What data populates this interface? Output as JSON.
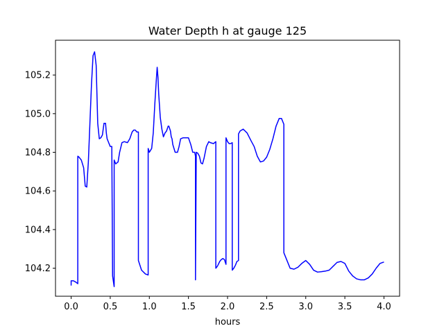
{
  "chart_data": {
    "type": "line",
    "title": "Water Depth h at gauge 125",
    "xlabel": "hours",
    "ylabel": "",
    "xlim": [
      -0.2,
      4.2
    ],
    "ylim": [
      104.055,
      105.38
    ],
    "xticks": [
      0.0,
      0.5,
      1.0,
      1.5,
      2.0,
      2.5,
      3.0,
      3.5,
      4.0
    ],
    "xtick_labels": [
      "0.0",
      "0.5",
      "1.0",
      "1.5",
      "2.0",
      "2.5",
      "3.0",
      "3.5",
      "4.0"
    ],
    "yticks": [
      104.2,
      104.4,
      104.6,
      104.8,
      105.0,
      105.2
    ],
    "ytick_labels": [
      "104.2",
      "104.4",
      "104.6",
      "104.8",
      "105.0",
      "105.2"
    ],
    "grid": false,
    "legend": "none",
    "series": [
      {
        "color": "#0000ff",
        "x": [
          0.0,
          0.0,
          0.03,
          0.06,
          0.085,
          0.085,
          0.1,
          0.13,
          0.16,
          0.18,
          0.2,
          0.22,
          0.24,
          0.26,
          0.28,
          0.3,
          0.32,
          0.34,
          0.36,
          0.38,
          0.4,
          0.42,
          0.44,
          0.45,
          0.46,
          0.48,
          0.5,
          0.52,
          0.53,
          0.53,
          0.55,
          0.55,
          0.57,
          0.6,
          0.62,
          0.65,
          0.68,
          0.72,
          0.75,
          0.78,
          0.8,
          0.82,
          0.84,
          0.86,
          0.86,
          0.9,
          0.95,
          0.985,
          0.985,
          1.0,
          1.03,
          1.05,
          1.07,
          1.09,
          1.1,
          1.11,
          1.12,
          1.14,
          1.16,
          1.18,
          1.2,
          1.22,
          1.24,
          1.25,
          1.27,
          1.28,
          1.29,
          1.3,
          1.33,
          1.36,
          1.38,
          1.4,
          1.43,
          1.46,
          1.5,
          1.53,
          1.555,
          1.58,
          1.59,
          1.59,
          1.6,
          1.62,
          1.64,
          1.66,
          1.68,
          1.7,
          1.73,
          1.76,
          1.78,
          1.82,
          1.85,
          1.85,
          1.87,
          1.9,
          1.92,
          1.94,
          1.96,
          1.98,
          1.98,
          2.0,
          2.02,
          2.04,
          2.06,
          2.06,
          2.08,
          2.1,
          2.12,
          2.14,
          2.14,
          2.16,
          2.2,
          2.25,
          2.3,
          2.34,
          2.38,
          2.42,
          2.46,
          2.5,
          2.54,
          2.58,
          2.62,
          2.66,
          2.69,
          2.72,
          2.72,
          2.75,
          2.8,
          2.85,
          2.9,
          2.95,
          3.0,
          3.05,
          3.1,
          3.15,
          3.2,
          3.25,
          3.3,
          3.35,
          3.4,
          3.45,
          3.5,
          3.55,
          3.6,
          3.65,
          3.7,
          3.75,
          3.8,
          3.85,
          3.9,
          3.95,
          4.0
        ],
        "y": [
          104.11,
          104.135,
          104.135,
          104.128,
          104.12,
          104.78,
          104.775,
          104.76,
          104.72,
          104.625,
          104.62,
          104.75,
          104.95,
          105.15,
          105.3,
          105.32,
          105.25,
          104.95,
          104.87,
          104.875,
          104.89,
          104.95,
          104.95,
          104.9,
          104.87,
          104.85,
          104.83,
          104.83,
          104.16,
          104.16,
          104.105,
          104.76,
          104.74,
          104.75,
          104.8,
          104.85,
          104.855,
          104.85,
          104.87,
          104.905,
          104.915,
          104.915,
          104.905,
          104.905,
          104.24,
          104.19,
          104.17,
          104.165,
          104.82,
          104.8,
          104.82,
          104.9,
          105.05,
          105.18,
          105.24,
          105.19,
          105.1,
          104.98,
          104.92,
          104.88,
          104.9,
          104.91,
          104.935,
          104.935,
          104.91,
          104.88,
          104.87,
          104.84,
          104.8,
          104.8,
          104.83,
          104.87,
          104.875,
          104.875,
          104.875,
          104.84,
          104.8,
          104.8,
          104.78,
          104.14,
          104.8,
          104.795,
          104.78,
          104.745,
          104.74,
          104.77,
          104.83,
          104.855,
          104.85,
          104.845,
          104.855,
          104.2,
          104.21,
          104.235,
          104.245,
          104.25,
          104.245,
          104.22,
          104.875,
          104.855,
          104.845,
          104.845,
          104.85,
          104.19,
          104.2,
          104.215,
          104.235,
          104.24,
          104.895,
          104.91,
          104.92,
          104.9,
          104.86,
          104.83,
          104.78,
          104.75,
          104.755,
          104.775,
          104.815,
          104.87,
          104.935,
          104.975,
          104.975,
          104.945,
          104.28,
          104.25,
          104.2,
          104.195,
          104.205,
          104.225,
          104.24,
          104.22,
          104.19,
          104.18,
          104.182,
          104.185,
          104.19,
          104.21,
          104.23,
          104.235,
          104.225,
          104.185,
          104.16,
          104.145,
          104.14,
          104.14,
          104.15,
          104.17,
          104.2,
          104.225,
          104.232
        ]
      }
    ]
  }
}
